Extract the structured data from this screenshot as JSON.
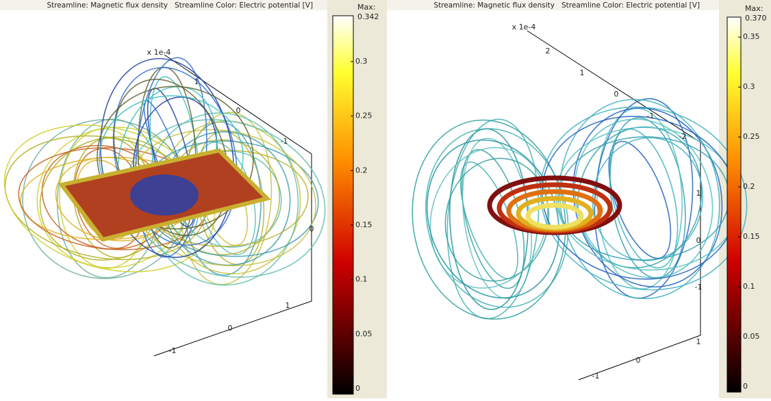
{
  "panels": [
    {
      "title": [
        "Streamline: Magnetic flux density",
        "Streamline Color: Electric potential [V]"
      ],
      "axis_label": "x 1e-4",
      "axis_ticks": [
        "1",
        "0",
        "-1",
        "0",
        "1",
        "0",
        "-1"
      ],
      "colorbar": {
        "max_label": "Max:",
        "max": 0.342,
        "ticks": [
          0,
          0.05,
          0.1,
          0.15,
          0.2,
          0.25,
          0.3
        ]
      }
    },
    {
      "title": [
        "Streamline: Magnetic flux density",
        "Streamline Color: Electric potential [V]"
      ],
      "axis_label": "x 1e-4",
      "axis_ticks": [
        "2",
        "1",
        "0",
        "-1",
        "-2",
        "1",
        "0",
        "-1",
        "1",
        "0",
        "-1"
      ],
      "colorbar": {
        "max_label": "Max:",
        "max": {
          "value": 0.37,
          "label": "0.370"
        },
        "ticks": [
          0,
          0.05,
          0.1,
          0.15,
          0.2,
          0.25,
          0.3,
          0.35
        ]
      }
    }
  ]
}
